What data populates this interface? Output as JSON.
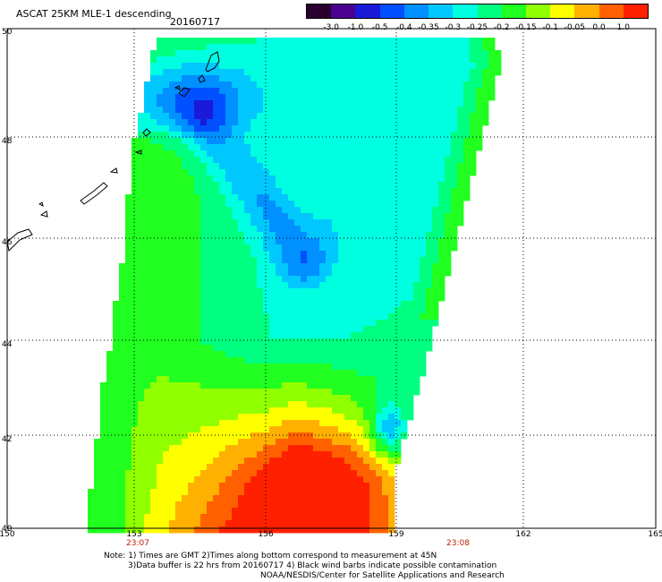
{
  "header": {
    "title": "ASCAT 25KM MLE-1 descending",
    "date": "20160717"
  },
  "colorbar": {
    "labels": [
      "-3.0",
      "-1.0",
      "-0.5",
      "-0.4",
      "-0.35",
      "-0.3",
      "-0.25",
      "-0.2",
      "-0.15",
      "-0.1",
      "-0.05",
      "0.0",
      "1.0"
    ],
    "colors": [
      "#2a0030",
      "#4a0090",
      "#1a1ad8",
      "#0050ff",
      "#0090ff",
      "#00c8ff",
      "#00ffe0",
      "#00ff80",
      "#20ff20",
      "#90ff00",
      "#ffff00",
      "#ffb000",
      "#ff6000",
      "#ff2000"
    ]
  },
  "axes": {
    "lat_labels": [
      "50",
      "48",
      "46",
      "44",
      "42",
      "40"
    ],
    "lon_labels": [
      "150",
      "153",
      "156",
      "159",
      "162",
      "165"
    ],
    "times": [
      "23:07",
      "23:08"
    ]
  },
  "notes": {
    "line1": "Note: 1) Times are GMT 2)Times along bottom correspond to measurement at 45N",
    "line2": "3)Data buffer is 22 hrs from 20160717 4) Black wind barbs indicate possible contamination",
    "line3": "NOAA/NESDIS/Center for Satellite Applications and Research"
  }
}
